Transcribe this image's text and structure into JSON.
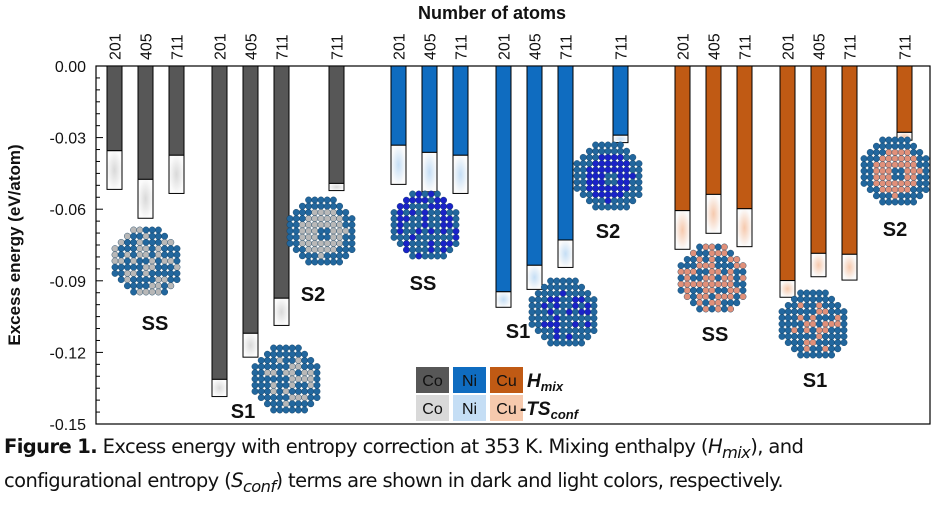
{
  "chart_data": {
    "type": "bar",
    "title": "Number of atoms",
    "ylabel": "Excess energy (eV/atom)",
    "ylim": [
      -0.15,
      0.0
    ],
    "yticks": [
      "0.00",
      "-0.03",
      "-0.06",
      "-0.09",
      "-0.12",
      "-0.15"
    ],
    "yticks_values": [
      0,
      -0.03,
      -0.06,
      -0.09,
      -0.12,
      -0.15
    ],
    "groups": [
      {
        "element": "Co",
        "structures": [
          {
            "label": "SS",
            "bars": [
              {
                "atoms": "201",
                "hmix": -0.0355,
                "ts": -0.0162
              },
              {
                "atoms": "405",
                "hmix": -0.0475,
                "ts": -0.0163
              },
              {
                "atoms": "711",
                "hmix": -0.0374,
                "ts": -0.016
              }
            ]
          },
          {
            "label": "S1",
            "bars": [
              {
                "atoms": "201",
                "hmix": -0.1313,
                "ts": -0.0072
              },
              {
                "atoms": "405",
                "hmix": -0.112,
                "ts": -0.01
              },
              {
                "atoms": "711",
                "hmix": -0.0973,
                "ts": -0.0114
              }
            ]
          },
          {
            "label": "S2",
            "bars": [
              {
                "atoms": "711",
                "hmix": -0.0492,
                "ts": -0.003
              }
            ]
          }
        ]
      },
      {
        "element": "Ni",
        "structures": [
          {
            "label": "SS",
            "bars": [
              {
                "atoms": "201",
                "hmix": -0.0332,
                "ts": -0.0164
              },
              {
                "atoms": "405",
                "hmix": -0.0362,
                "ts": -0.0165
              },
              {
                "atoms": "711",
                "hmix": -0.0374,
                "ts": -0.016
              }
            ]
          },
          {
            "label": "S1",
            "bars": [
              {
                "atoms": "201",
                "hmix": -0.0946,
                "ts": -0.0065
              },
              {
                "atoms": "405",
                "hmix": -0.0835,
                "ts": -0.0101
              },
              {
                "atoms": "711",
                "hmix": -0.0729,
                "ts": -0.0115
              }
            ]
          },
          {
            "label": "S2",
            "bars": [
              {
                "atoms": "711",
                "hmix": -0.029,
                "ts": -0.0031
              }
            ]
          }
        ]
      },
      {
        "element": "Cu",
        "structures": [
          {
            "label": "SS",
            "bars": [
              {
                "atoms": "201",
                "hmix": -0.0606,
                "ts": -0.0162
              },
              {
                "atoms": "405",
                "hmix": -0.0538,
                "ts": -0.0163
              },
              {
                "atoms": "711",
                "hmix": -0.0598,
                "ts": -0.0159
              }
            ]
          },
          {
            "label": "S1",
            "bars": [
              {
                "atoms": "201",
                "hmix": -0.0899,
                "ts": -0.007
              },
              {
                "atoms": "405",
                "hmix": -0.0785,
                "ts": -0.0098
              },
              {
                "atoms": "711",
                "hmix": -0.0789,
                "ts": -0.0108
              }
            ]
          },
          {
            "label": "S2",
            "bars": [
              {
                "atoms": "711",
                "hmix": -0.0278,
                "ts": -0.0033
              }
            ]
          }
        ]
      }
    ],
    "colors": {
      "Co": {
        "dark": "#575757",
        "light": "#d9d9d9"
      },
      "Ni": {
        "dark": "#0f6cc0",
        "light": "#c5def5"
      },
      "Cu": {
        "dark": "#c05a14",
        "light": "#f6c9ad"
      }
    },
    "legend": {
      "placement": "bottom-center",
      "rows": [
        {
          "items": [
            "Co",
            "Ni",
            "Cu"
          ],
          "label": "H",
          "sub": "mix",
          "prefix": ""
        },
        {
          "items": [
            "Co",
            "Ni",
            "Cu"
          ],
          "label": "TS",
          "sub": "conf",
          "prefix": "-"
        }
      ]
    }
  },
  "caption": {
    "label": "Figure 1.",
    "text1": " Excess energy with entropy correction at 353 K. Mixing enthalpy (",
    "h": "H",
    "h_sub": "mix",
    "text2": "), and configurational entropy (",
    "s": "S",
    "s_sub": "conf",
    "text3": ") terms are shown in dark and light colors, respectively."
  }
}
